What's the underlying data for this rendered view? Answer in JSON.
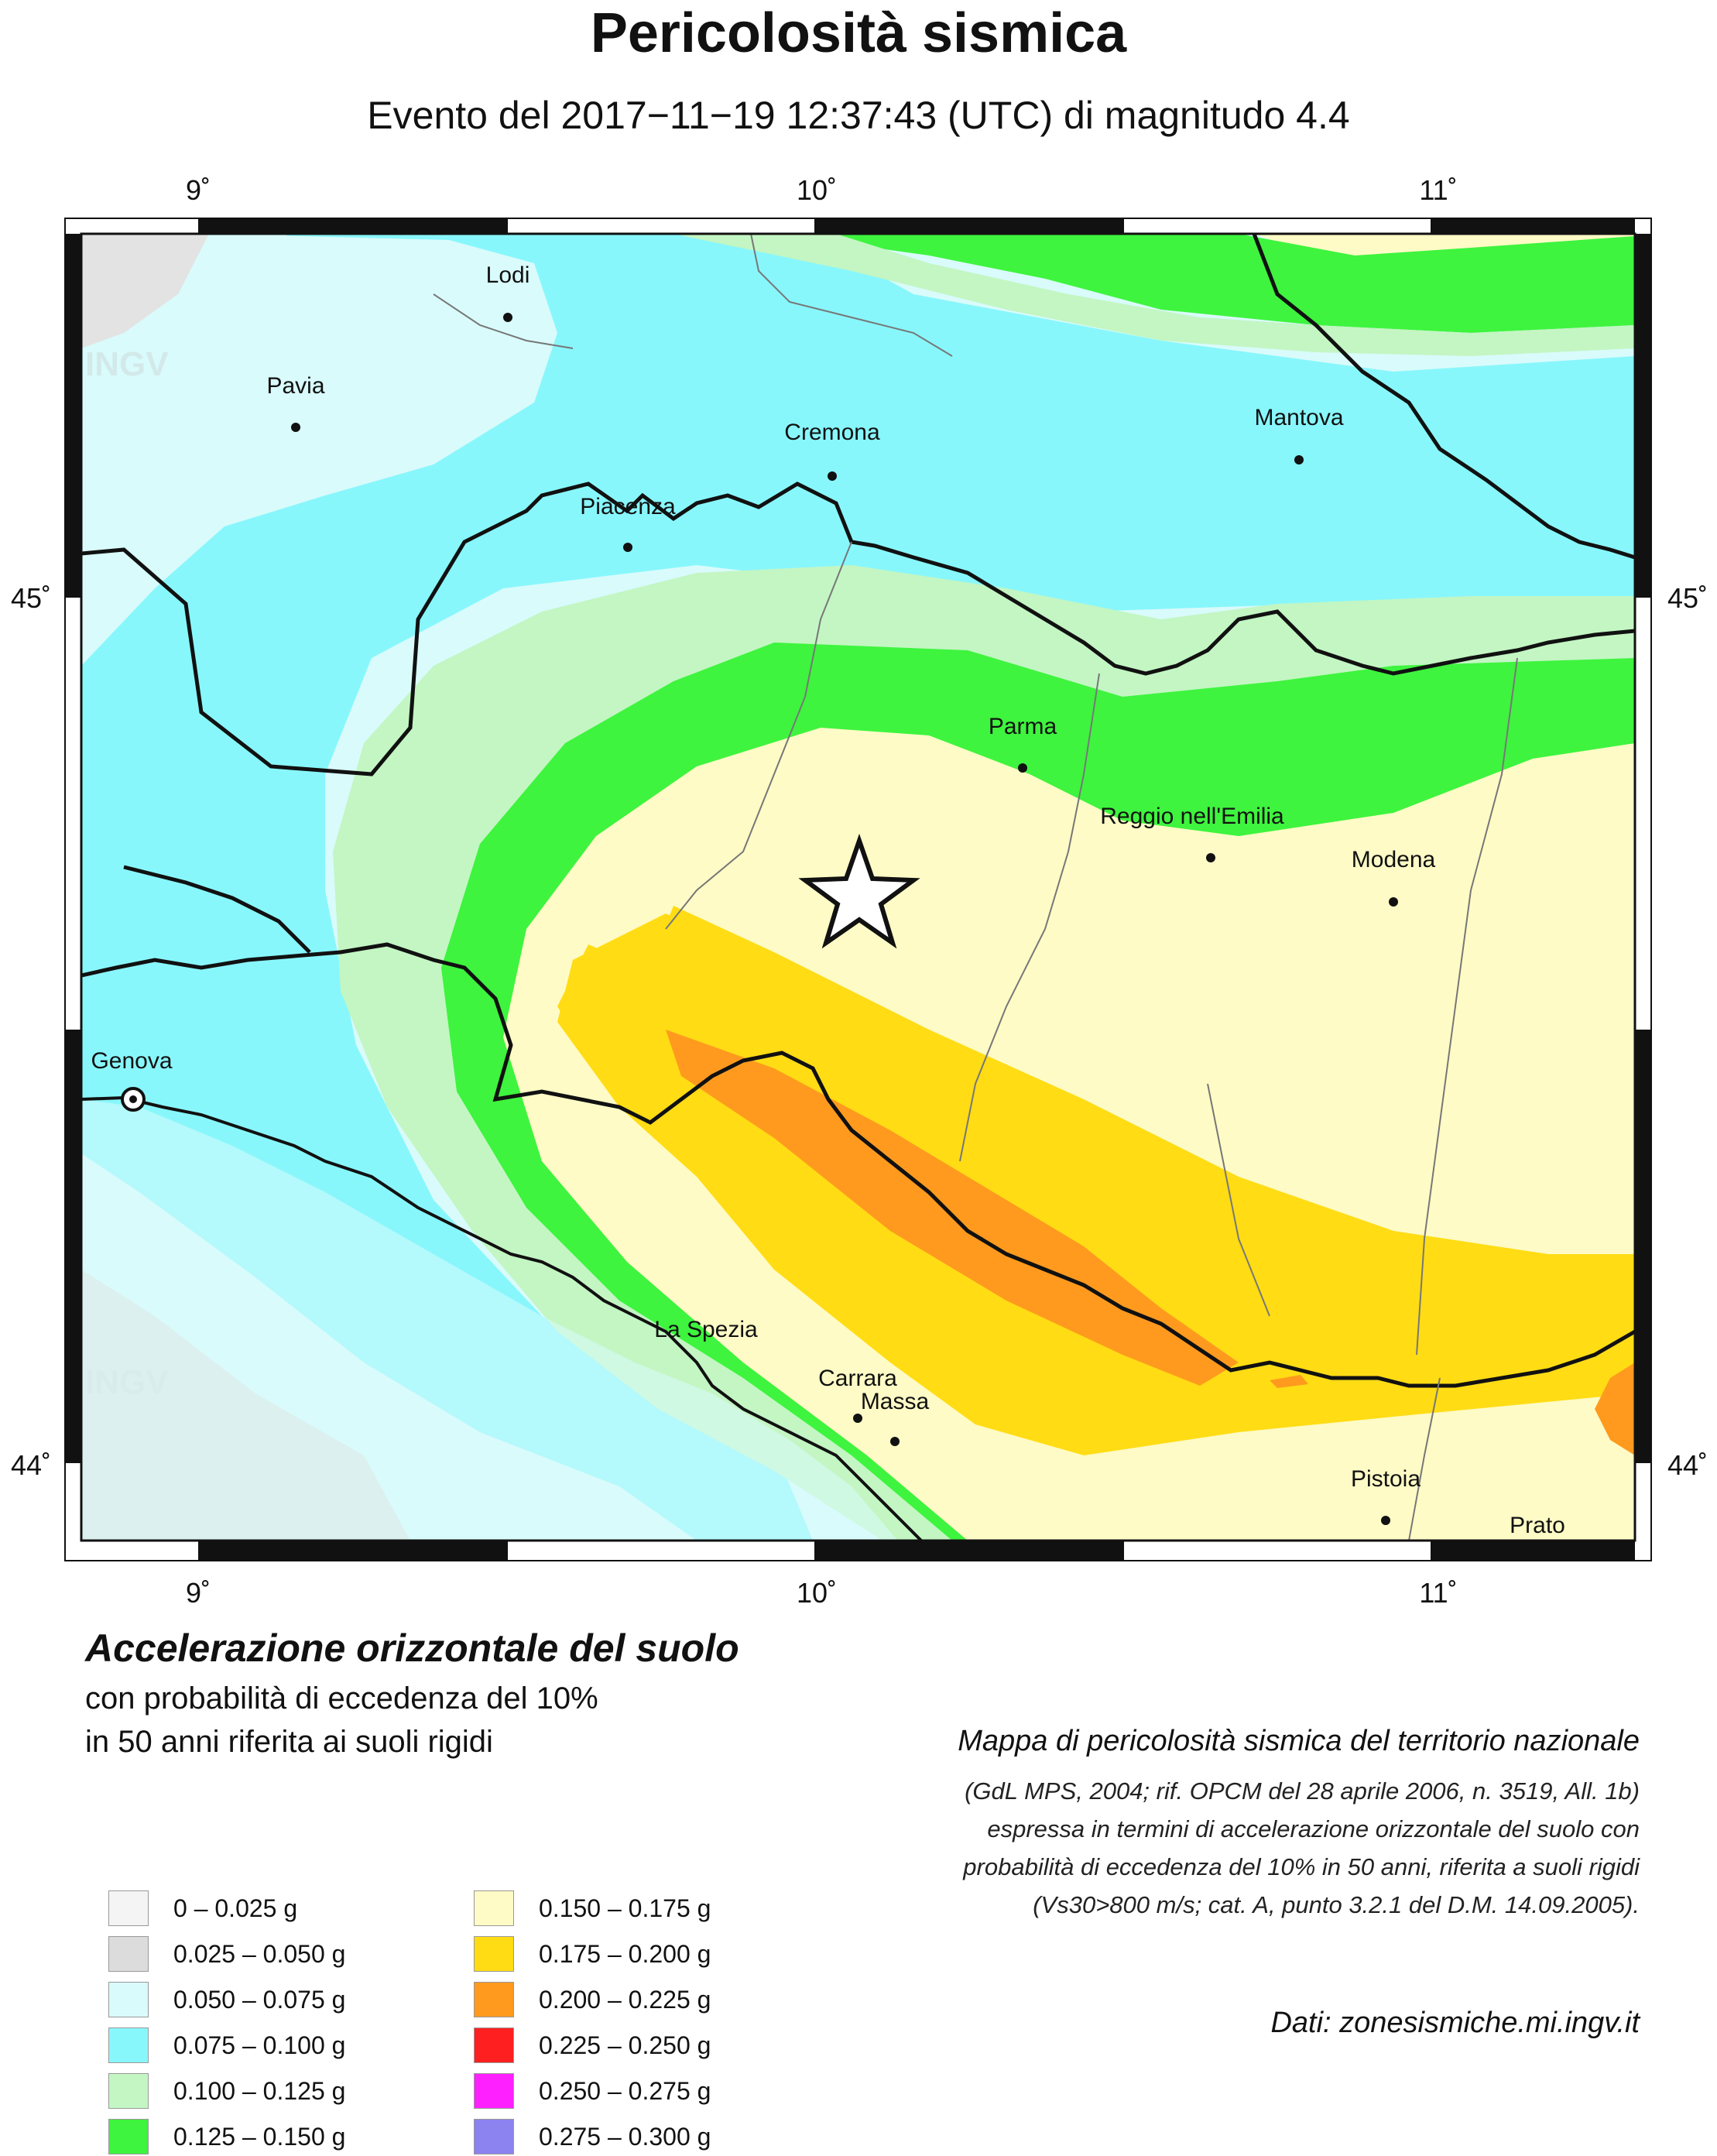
{
  "header": {
    "title": "Pericolosità sismica",
    "subtitle": "Evento del 2017−11−19 12:37:43 (UTC) di magnitudo 4.4"
  },
  "map": {
    "lon_ticks": [
      "9˚",
      "10˚",
      "11˚"
    ],
    "lat_ticks": [
      "45˚",
      "44˚"
    ],
    "watermark": "INGV",
    "cities": [
      "Lodi",
      "Pavia",
      "Cremona",
      "Mantova",
      "Piacenza",
      "Parma",
      "Reggio nell'Emilia",
      "Modena",
      "Genova",
      "La Spezia",
      "Carrara",
      "Massa",
      "Pistoia",
      "Prato"
    ],
    "epicenter_icon": "star-icon",
    "genova_icon": "target-icon"
  },
  "info": {
    "title": "Accelerazione orizzontale del suolo",
    "line1": "con probabilità di eccedenza del 10%",
    "line2": "in 50 anni riferita ai suoli rigidi"
  },
  "credits": {
    "main": "Mappa di pericolosità sismica del territorio nazionale",
    "lines": [
      "(GdL MPS, 2004; rif. OPCM del 28 aprile 2006, n. 3519, All. 1b)",
      "espressa in termini di accelerazione orizzontale del suolo con",
      "probabilità di eccedenza del 10% in 50 anni, riferita a suoli rigidi",
      "(Vs30>800 m/s; cat. A, punto 3.2.1 del D.M. 14.09.2005)."
    ],
    "dati": "Dati: zonesismiche.mi.ingv.it"
  },
  "legend": [
    {
      "label": "0 –  0.025 g",
      "color": "#f4f4f4"
    },
    {
      "label": "0.025 – 0.050 g",
      "color": "#dcdcdc"
    },
    {
      "label": "0.050 – 0.075 g",
      "color": "#d9fbfb"
    },
    {
      "label": "0.075 – 0.100 g",
      "color": "#88f7fc"
    },
    {
      "label": "0.100 – 0.125 g",
      "color": "#c3f6c3"
    },
    {
      "label": "0.125 – 0.150 g",
      "color": "#3ef43e"
    },
    {
      "label": "0.150 – 0.175 g",
      "color": "#fffbc6"
    },
    {
      "label": "0.175 – 0.200 g",
      "color": "#ffdc14"
    },
    {
      "label": "0.200 – 0.225 g",
      "color": "#ff9a1e"
    },
    {
      "label": "0.225 – 0.250 g",
      "color": "#fe2020"
    },
    {
      "label": "0.250 – 0.275 g",
      "color": "#ff20ff"
    },
    {
      "label": "0.275 – 0.300 g",
      "color": "#8c82f0"
    }
  ]
}
